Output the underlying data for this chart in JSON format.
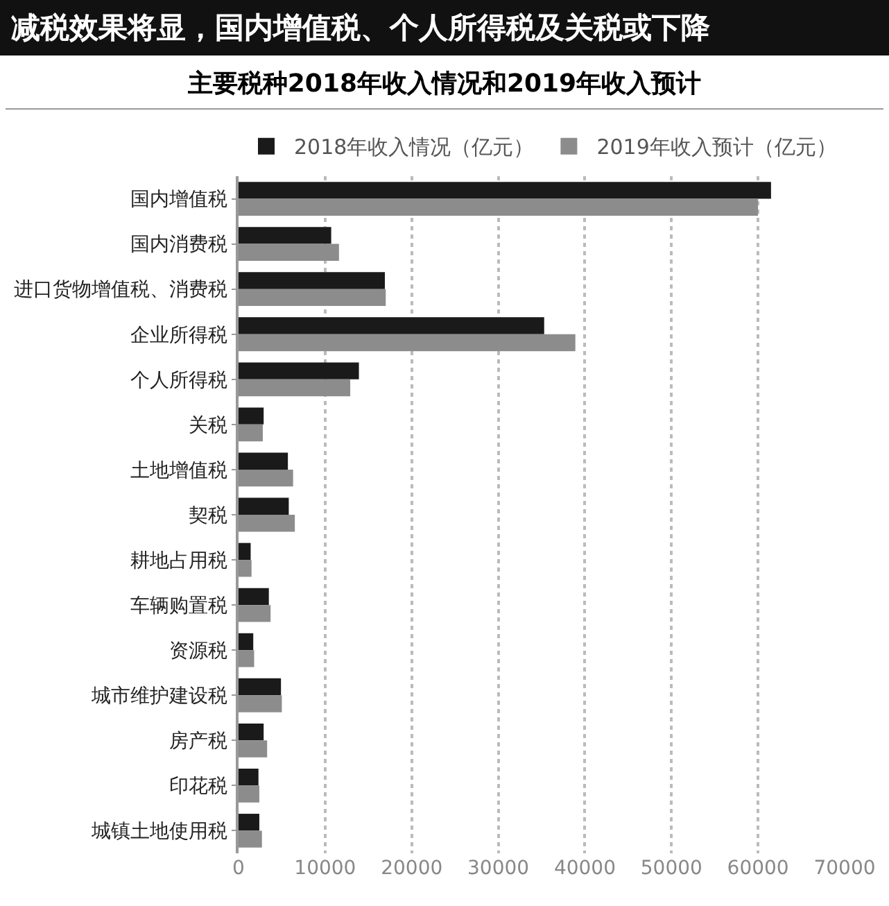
{
  "chart_data": {
    "type": "bar",
    "orientation": "horizontal",
    "title": "减税效果将显，国内增值税、个人所得税及关税或下降",
    "subtitle": "主要税种2018年收入情况和2019年收入预计",
    "categories": [
      "国内增值税",
      "国内消费税",
      "进口货物增值税、消费税",
      "企业所得税",
      "个人所得税",
      "关税",
      "土地增值税",
      "契税",
      "耕地占用税",
      "车辆购置税",
      "资源税",
      "城市维护建设税",
      "房产税",
      "印花税",
      "城镇土地使用税"
    ],
    "series": [
      {
        "name": "2018年收入情况（亿元）",
        "color": "#1a1a1a",
        "values": [
          61500,
          10700,
          16900,
          35300,
          13900,
          2900,
          5700,
          5800,
          1400,
          3500,
          1700,
          4900,
          2900,
          2300,
          2400
        ]
      },
      {
        "name": "2019年收入预计（亿元）",
        "color": "#8c8c8c",
        "values": [
          60000,
          11600,
          17000,
          38900,
          12900,
          2800,
          6300,
          6500,
          1500,
          3700,
          1800,
          5000,
          3300,
          2400,
          2700
        ]
      }
    ],
    "xlim": [
      0,
      70000
    ],
    "xticks": [
      0,
      10000,
      20000,
      30000,
      40000,
      50000,
      60000,
      70000
    ],
    "grid": "x",
    "legend": "top"
  }
}
